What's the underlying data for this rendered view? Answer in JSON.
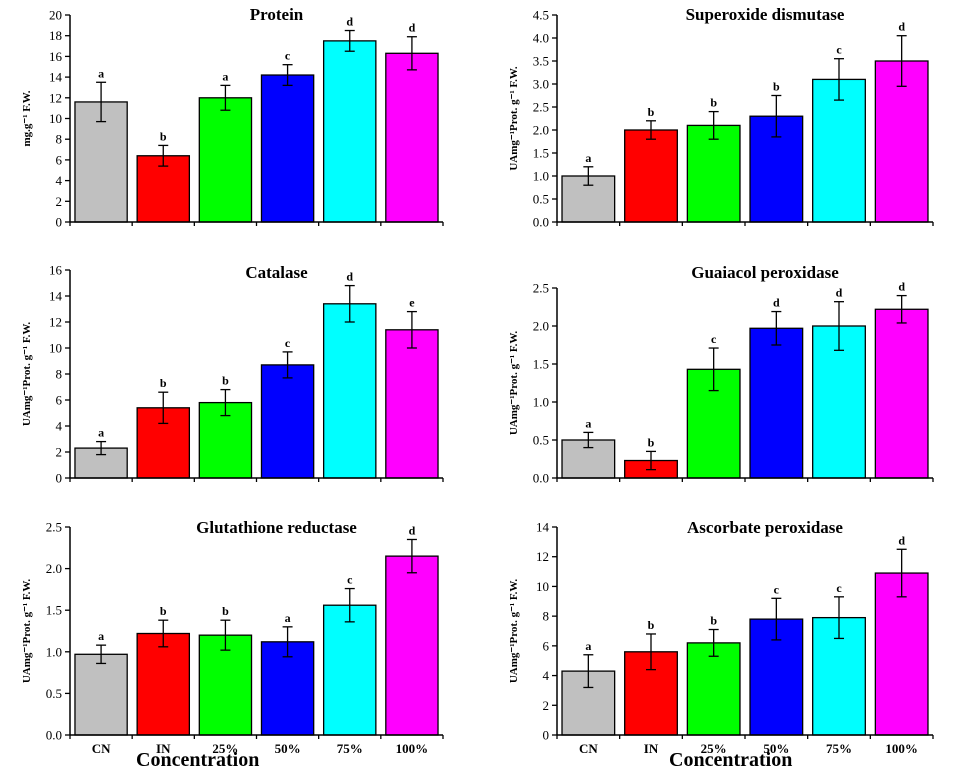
{
  "colors": [
    "#c0c0c0",
    "#ff0000",
    "#00ff00",
    "#0000ff",
    "#00ffff",
    "#ff00ff"
  ],
  "chart_data": [
    {
      "type": "bar",
      "title": "Protein",
      "ylabel": "mg.g⁻¹ F.W.",
      "categories": [
        "CN",
        "IN",
        "25%",
        "50%",
        "75%",
        "100%"
      ],
      "values": [
        11.6,
        6.4,
        12.0,
        14.2,
        17.5,
        16.3
      ],
      "errors": [
        1.9,
        1.0,
        1.2,
        1.0,
        1.0,
        1.6
      ],
      "letters": [
        "a",
        "b",
        "a",
        "c",
        "d",
        "d"
      ],
      "ylim": [
        0,
        20
      ],
      "yticks": [
        "0",
        "2",
        "4",
        "6",
        "8",
        "10",
        "12",
        "14",
        "16",
        "18",
        "20"
      ]
    },
    {
      "type": "bar",
      "title": "Superoxide dismutase",
      "ylabel": "UAmg⁻¹Prot. g⁻¹ F.W.",
      "categories": [
        "CN",
        "IN",
        "25%",
        "50%",
        "75%",
        "100%"
      ],
      "values": [
        1.0,
        2.0,
        2.1,
        2.3,
        3.1,
        3.5
      ],
      "errors": [
        0.2,
        0.2,
        0.3,
        0.45,
        0.45,
        0.55
      ],
      "letters": [
        "a",
        "b",
        "b",
        "b",
        "c",
        "d"
      ],
      "ylim": [
        0,
        4.5
      ],
      "yticks": [
        "0.0",
        "0.5",
        "1.0",
        "1.5",
        "2.0",
        "2.5",
        "3.0",
        "3.5",
        "4.0",
        "4.5"
      ]
    },
    {
      "type": "bar",
      "title": "Catalase",
      "ylabel": "UAmg⁻¹Prot. g⁻¹ F.W.",
      "categories": [
        "CN",
        "IN",
        "25%",
        "50%",
        "75%",
        "100%"
      ],
      "values": [
        2.3,
        5.4,
        5.8,
        8.7,
        13.4,
        11.4
      ],
      "errors": [
        0.5,
        1.2,
        1.0,
        1.0,
        1.4,
        1.4
      ],
      "letters": [
        "a",
        "b",
        "b",
        "c",
        "d",
        "e"
      ],
      "ylim": [
        0,
        16
      ],
      "yticks": [
        "0",
        "2",
        "4",
        "6",
        "8",
        "10",
        "12",
        "14",
        "16"
      ]
    },
    {
      "type": "bar",
      "title": "Guaiacol peroxidase",
      "ylabel": "UAmg⁻¹Prot. g⁻¹ F.W.",
      "categories": [
        "CN",
        "IN",
        "25%",
        "50%",
        "75%",
        "100%"
      ],
      "values": [
        0.5,
        0.23,
        1.43,
        1.97,
        2.0,
        2.22
      ],
      "errors": [
        0.1,
        0.12,
        0.28,
        0.22,
        0.32,
        0.18
      ],
      "letters": [
        "a",
        "b",
        "c",
        "d",
        "d",
        "d"
      ],
      "ylim": [
        0,
        2.5
      ],
      "yticks": [
        "0.0",
        "0.5",
        "1.0",
        "1.5",
        "2.0",
        "2.5"
      ]
    },
    {
      "type": "bar",
      "title": "Glutathione reductase",
      "ylabel": "UAmg⁻¹Prot. g⁻¹ F.W.",
      "categories": [
        "CN",
        "IN",
        "25%",
        "50%",
        "75%",
        "100%"
      ],
      "values": [
        0.97,
        1.22,
        1.2,
        1.12,
        1.56,
        2.15
      ],
      "errors": [
        0.11,
        0.16,
        0.18,
        0.18,
        0.2,
        0.2
      ],
      "letters": [
        "a",
        "b",
        "b",
        "a",
        "c",
        "d"
      ],
      "ylim": [
        0,
        2.5
      ],
      "yticks": [
        "0.0",
        "0.5",
        "1.0",
        "1.5",
        "2.0",
        "2.5"
      ]
    },
    {
      "type": "bar",
      "title": "Ascorbate peroxidase",
      "ylabel": "UAmg⁻¹Prot. g⁻¹ F.W.",
      "categories": [
        "CN",
        "IN",
        "25%",
        "50%",
        "75%",
        "100%"
      ],
      "values": [
        4.3,
        5.6,
        6.2,
        7.8,
        7.9,
        10.9
      ],
      "errors": [
        1.1,
        1.2,
        0.9,
        1.4,
        1.4,
        1.6
      ],
      "letters": [
        "a",
        "b",
        "b",
        "c",
        "c",
        "d"
      ],
      "ylim": [
        0,
        14
      ],
      "yticks": [
        "0",
        "2",
        "4",
        "6",
        "8",
        "10",
        "12",
        "14"
      ]
    }
  ],
  "xlabel": "Concentration"
}
